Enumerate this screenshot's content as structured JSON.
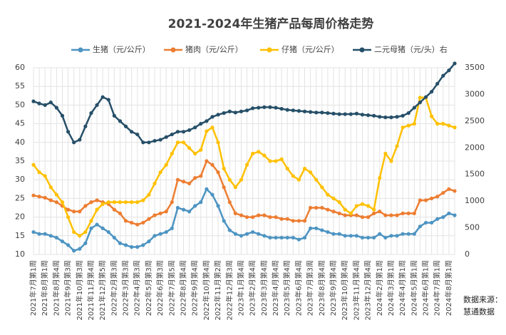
{
  "chart_data": {
    "type": "line",
    "title": "2021-2024年生猪产品每周价格走势",
    "source_label": "数据来源：",
    "source_name": "慧通数据",
    "categories": [
      "2021年7月第1周",
      null,
      "2021年8月第1周",
      null,
      "2021年8月第4周",
      null,
      "2021年9月第3周",
      null,
      "2021年10月第3周",
      null,
      "2021年11月第4周",
      null,
      "2021年12月第5周",
      null,
      "2022年2月第3周",
      null,
      "2022年3月第3周",
      null,
      "2022年4月第3周",
      null,
      "2022年5月第3周",
      null,
      "2022年6月第3周",
      null,
      "2022年7月第5周",
      null,
      "2022年8月第4周",
      null,
      "2022年9月第4周",
      null,
      "2022年10月第4周",
      null,
      "2022年11月第2周",
      null,
      "2022年12月第3周",
      null,
      "2023年1月第4周",
      null,
      "2023年2月第4周",
      null,
      "2023年3月第4周",
      null,
      "2023年4月第4周",
      null,
      "2023年5月第4周",
      null,
      "2023年6月第4周",
      null,
      "2023年7月第3周",
      null,
      "2023年8月第4周",
      null,
      "2023年9月第4周",
      null,
      "2023年10月第4周",
      null,
      "2023年11月第4周",
      null,
      "2023年12月第4周",
      null,
      "2024年2月第1周",
      null,
      "2024年3月第1周",
      null,
      "2024年4月第1周",
      null,
      "2024年5月第1周",
      null,
      "2024年6月第1周",
      null,
      "2024年7月第1周",
      null,
      "2024年8月第1周",
      null
    ],
    "series": [
      {
        "name": "生猪（元/公斤）",
        "color": "#4d94c2",
        "values": [
          16,
          15.5,
          15.5,
          15,
          14.5,
          13.5,
          12.5,
          11,
          11.5,
          13,
          17,
          18,
          17,
          16,
          14.5,
          13,
          12.5,
          12,
          12,
          12.5,
          13.5,
          15,
          15.5,
          16,
          17,
          22.5,
          22,
          21.5,
          23,
          24,
          27.5,
          26,
          23,
          19,
          16.5,
          15.5,
          15,
          15.5,
          16,
          15.5,
          15,
          14.5,
          14.5,
          14.5,
          14.5,
          14.5,
          14,
          14.5,
          17,
          17,
          16.5,
          16,
          15.5,
          15.5,
          15,
          15,
          15,
          14.5,
          14.5,
          14.5,
          15.5,
          14.5,
          15,
          15,
          15.5,
          15.5,
          15.5,
          17.5,
          18.5,
          18.5,
          19.5,
          20,
          21,
          20.5
        ]
      },
      {
        "name": "猪肉（元/公斤）",
        "color": "#ed7d31",
        "values": [
          25.8,
          25.5,
          25.2,
          24.5,
          24,
          23,
          22,
          21.5,
          21.5,
          23,
          24,
          24.5,
          24,
          23.5,
          22,
          21,
          19,
          18.5,
          18,
          18.5,
          19.5,
          20.5,
          21,
          21.5,
          24,
          30,
          29.5,
          29,
          30.5,
          31,
          35,
          34,
          32,
          28,
          24,
          21,
          20.5,
          20,
          20,
          20.5,
          20.5,
          20,
          20,
          19.5,
          19.5,
          19,
          19,
          19,
          22.5,
          22.5,
          22.5,
          22,
          21.5,
          21,
          20.5,
          20.5,
          20.5,
          20,
          20,
          21,
          21.5,
          20.5,
          20.5,
          20.5,
          21,
          21,
          21,
          24.5,
          24.5,
          25,
          25.5,
          26.5,
          27.5,
          27
        ]
      },
      {
        "name": "仔猪（元/公斤）",
        "color": "#ffc000",
        "values": [
          34,
          32,
          31,
          28,
          26,
          24,
          20,
          16,
          15,
          16,
          19,
          22,
          23.5,
          24,
          24,
          24,
          24,
          24,
          24,
          24.5,
          26,
          29,
          32,
          34,
          37,
          40,
          40,
          38.5,
          37,
          38,
          43,
          44,
          40,
          33,
          30,
          28,
          30,
          34,
          37,
          37.5,
          36.5,
          35,
          35,
          35.5,
          33,
          31,
          30,
          33,
          32,
          30,
          28,
          26,
          25,
          24,
          22,
          21,
          23,
          23.5,
          23,
          22,
          30.5,
          37,
          35,
          39,
          44,
          44.5,
          45,
          52,
          52,
          47,
          45,
          45,
          44.5,
          44
        ]
      },
      {
        "name": "二元母猪（元/头）右",
        "color": "#264f68",
        "axis": "y2",
        "values": [
          2870,
          2830,
          2800,
          2850,
          2750,
          2600,
          2300,
          2100,
          2150,
          2400,
          2650,
          2800,
          2950,
          2900,
          2600,
          2500,
          2400,
          2300,
          2250,
          2100,
          2100,
          2130,
          2150,
          2200,
          2250,
          2300,
          2300,
          2330,
          2380,
          2450,
          2500,
          2580,
          2620,
          2650,
          2680,
          2660,
          2680,
          2700,
          2740,
          2750,
          2760,
          2760,
          2750,
          2730,
          2710,
          2700,
          2690,
          2680,
          2670,
          2660,
          2660,
          2650,
          2640,
          2630,
          2630,
          2630,
          2640,
          2620,
          2610,
          2600,
          2580,
          2570,
          2570,
          2580,
          2600,
          2650,
          2750,
          2850,
          2950,
          3050,
          3200,
          3350,
          3450,
          3580
        ]
      }
    ],
    "ylim": [
      10,
      60
    ],
    "yticks": [
      10,
      15,
      20,
      25,
      30,
      35,
      40,
      45,
      50,
      55,
      60
    ],
    "y2lim": [
      0,
      3500
    ],
    "y2ticks": [
      0,
      500,
      1000,
      1500,
      2000,
      2500,
      3000,
      3500
    ],
    "grid": true,
    "legend": "top"
  }
}
